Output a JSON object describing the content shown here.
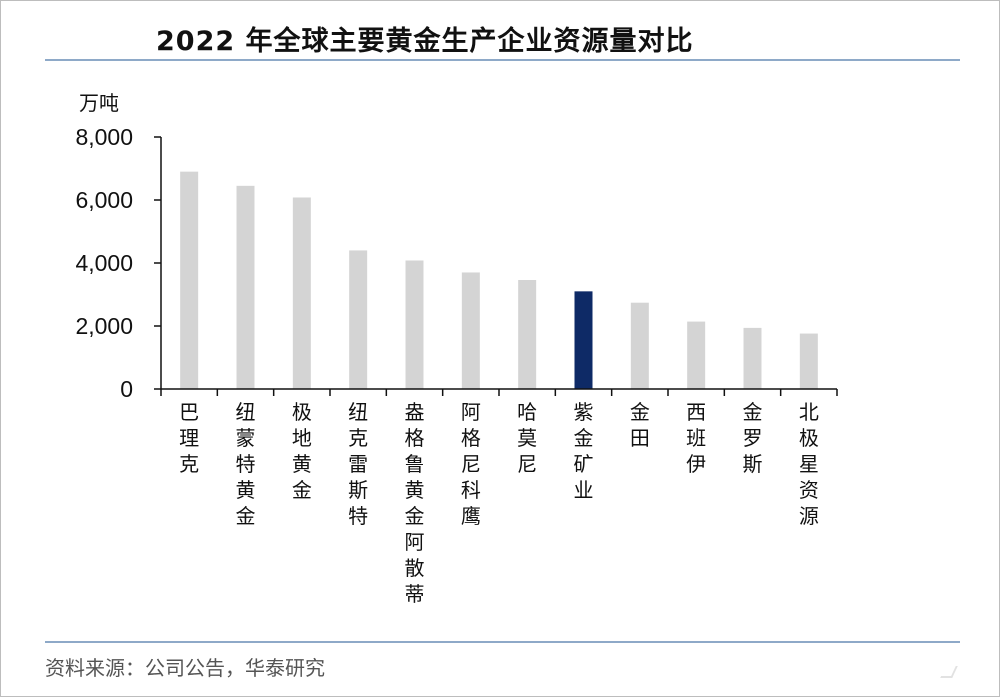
{
  "page": {
    "title": "2022 年全球主要黄金生产企业资源量对比",
    "source": "资料来源：公司公告，华泰研究"
  },
  "chart_data": {
    "type": "bar",
    "title": "2022 年全球主要黄金生产企业资源量对比",
    "ylabel": "万吨",
    "xlabel": "",
    "ylim": [
      0,
      8000
    ],
    "yticks": [
      0,
      2000,
      4000,
      6000,
      8000
    ],
    "ytick_labels": [
      "0",
      "2,000",
      "4,000",
      "6,000",
      "8,000"
    ],
    "categories": [
      "巴理克",
      "纽蒙特黄金",
      "极地黄金",
      "纽克雷斯特",
      "盎格鲁黄金阿散蒂",
      "阿格尼科鹰",
      "哈莫尼",
      "紫金矿业",
      "金田",
      "西班伊",
      "金罗斯",
      "北极星资源"
    ],
    "values": [
      6900,
      6450,
      6080,
      4400,
      4080,
      3700,
      3460,
      3100,
      2740,
      2140,
      1940,
      1760
    ],
    "bar_colors": [
      "#d4d4d4",
      "#d4d4d4",
      "#d4d4d4",
      "#d4d4d4",
      "#d4d4d4",
      "#d4d4d4",
      "#d4d4d4",
      "#0e2a66",
      "#d4d4d4",
      "#d4d4d4",
      "#d4d4d4",
      "#d4d4d4"
    ],
    "default_bar_color": "#d4d4d4",
    "highlight_color": "#0e2a66",
    "grid": false,
    "legend": "none"
  },
  "colors": {
    "rule": "#8ea9c8",
    "axis": "#111111",
    "text": "#111111",
    "source_text": "#555555"
  }
}
